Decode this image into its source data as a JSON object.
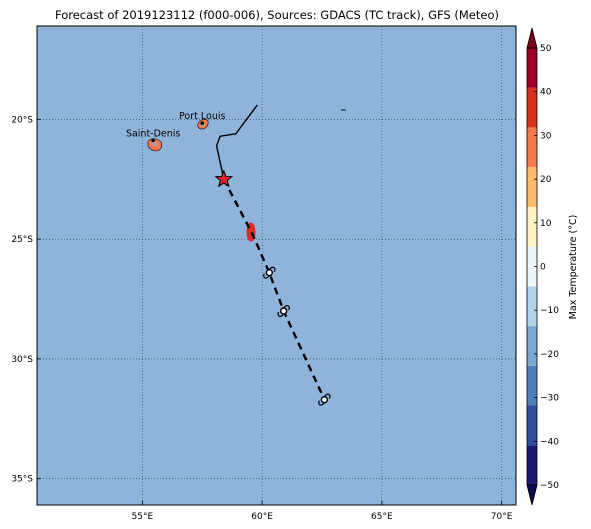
{
  "title": "Forecast of 2019123112 (f000-006), Sources: GDACS (TC track), GFS (Meteo)",
  "map": {
    "lon_range": [
      50.6,
      70.6
    ],
    "lat_range": [
      -36.1,
      -16.1
    ],
    "ocean_color": "#8fb4d9",
    "land_color": "#9ab5d1",
    "grid": "dotted",
    "lon_ticks": [
      {
        "value": 55,
        "label": "55°E"
      },
      {
        "value": 60,
        "label": "60°E"
      },
      {
        "value": 65,
        "label": "65°E"
      },
      {
        "value": 70,
        "label": "70°E"
      }
    ],
    "lat_ticks": [
      {
        "value": -20,
        "label": "20°S"
      },
      {
        "value": -25,
        "label": "25°S"
      },
      {
        "value": -30,
        "label": "30°S"
      },
      {
        "value": -35,
        "label": "35°S"
      }
    ],
    "cities": [
      {
        "name": "Port Louis",
        "lon": 57.5,
        "lat": -20.16
      },
      {
        "name": "Saint-Denis",
        "lon": 55.45,
        "lat": -20.88
      }
    ],
    "past_track": [
      [
        59.8,
        -19.4
      ],
      [
        58.9,
        -20.6
      ],
      [
        58.25,
        -20.7
      ],
      [
        58.1,
        -21.1
      ],
      [
        58.4,
        -22.5
      ]
    ],
    "forecast_track": [
      [
        58.4,
        -22.5
      ],
      [
        59.6,
        -24.8
      ],
      [
        60.3,
        -26.4
      ],
      [
        60.9,
        -28.0
      ],
      [
        62.6,
        -31.7
      ]
    ],
    "current_position": {
      "lon": 58.4,
      "lat": -22.5
    },
    "cyclone_symbols": [
      [
        60.3,
        -26.4
      ],
      [
        60.9,
        -28.0
      ],
      [
        62.6,
        -31.7
      ]
    ]
  },
  "colorbar": {
    "label": "Max Temperature (°C)",
    "min": -50,
    "max": 50,
    "step": 10,
    "ticks": [
      {
        "value": 50,
        "label": "50"
      },
      {
        "value": 40,
        "label": "40"
      },
      {
        "value": 30,
        "label": "30"
      },
      {
        "value": 20,
        "label": "20"
      },
      {
        "value": 10,
        "label": "10"
      },
      {
        "value": 0,
        "label": "0"
      },
      {
        "value": -10,
        "label": "−10"
      },
      {
        "value": -20,
        "label": "−20"
      },
      {
        "value": -30,
        "label": "−30"
      },
      {
        "value": -40,
        "label": "−40"
      },
      {
        "value": -50,
        "label": "−50"
      }
    ],
    "colors": [
      "#1a1a6e",
      "#2f4f9e",
      "#4f7fb8",
      "#7aa8d0",
      "#b2d4e8",
      "#eaf6fb",
      "#fff2c4",
      "#fdbb6e",
      "#f4794e",
      "#d7301f",
      "#9e0023"
    ],
    "extend_low_color": "#0c0c55",
    "extend_high_color": "#7a0019"
  }
}
